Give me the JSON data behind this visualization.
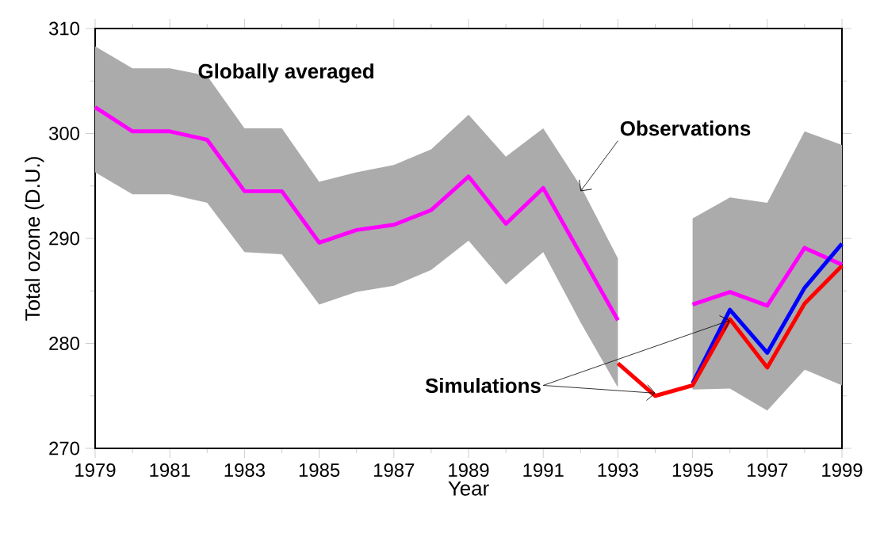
{
  "chart_data": {
    "type": "line",
    "x": [
      1979,
      1980,
      1981,
      1982,
      1983,
      1984,
      1985,
      1986,
      1987,
      1988,
      1989,
      1990,
      1991,
      1992,
      1993,
      1994,
      1995,
      1996,
      1997,
      1998,
      1999
    ],
    "xlabel": "Year",
    "ylabel": "Total ozone (D.U.)",
    "xlim": [
      1979,
      1999
    ],
    "xticks": [
      1979,
      1981,
      1983,
      1985,
      1987,
      1989,
      1991,
      1993,
      1995,
      1997,
      1999
    ],
    "ylim": [
      270,
      310
    ],
    "yticks": [
      270,
      280,
      290,
      300,
      310
    ],
    "series": [
      {
        "color": "#ff00ff",
        "values": [
          302.5,
          300.2,
          300.2,
          299.4,
          294.5,
          294.5,
          289.6,
          290.8,
          291.3,
          292.7,
          295.9,
          291.4,
          294.8,
          288.5,
          282.2,
          null,
          283.7,
          284.9,
          283.6,
          289.1,
          287.5
        ],
        "upper": [
          308.3,
          306.2,
          306.2,
          305.5,
          300.5,
          300.5,
          295.4,
          296.3,
          297.0,
          298.5,
          301.8,
          297.8,
          300.5,
          295.0,
          288.1,
          null,
          291.9,
          293.9,
          293.4,
          300.2,
          298.9
        ],
        "lower": [
          296.3,
          294.2,
          294.2,
          293.4,
          288.7,
          288.5,
          283.7,
          284.9,
          285.5,
          287.0,
          289.8,
          285.6,
          288.7,
          282.0,
          275.8,
          null,
          275.6,
          275.7,
          273.6,
          277.5,
          276.0
        ]
      },
      {
        "color": "#0000ff",
        "values": [
          null,
          null,
          null,
          null,
          null,
          null,
          null,
          null,
          null,
          null,
          null,
          null,
          null,
          null,
          null,
          null,
          276.2,
          283.2,
          279.1,
          285.3,
          289.5
        ]
      },
      {
        "color": "#ff0000",
        "values": [
          null,
          null,
          null,
          null,
          null,
          null,
          null,
          null,
          null,
          null,
          null,
          null,
          null,
          null,
          278.1,
          275.0,
          276.0,
          282.3,
          277.7,
          283.8,
          287.4
        ]
      }
    ],
    "annotations": [
      "Globally averaged",
      {
        "text": "Observations",
        "x": 1992,
        "y": 294.5
      },
      {
        "text": "Simulations",
        "x": 1996,
        "y": 282.2
      }
    ],
    "marker": "none",
    "line_style": "solid"
  }
}
